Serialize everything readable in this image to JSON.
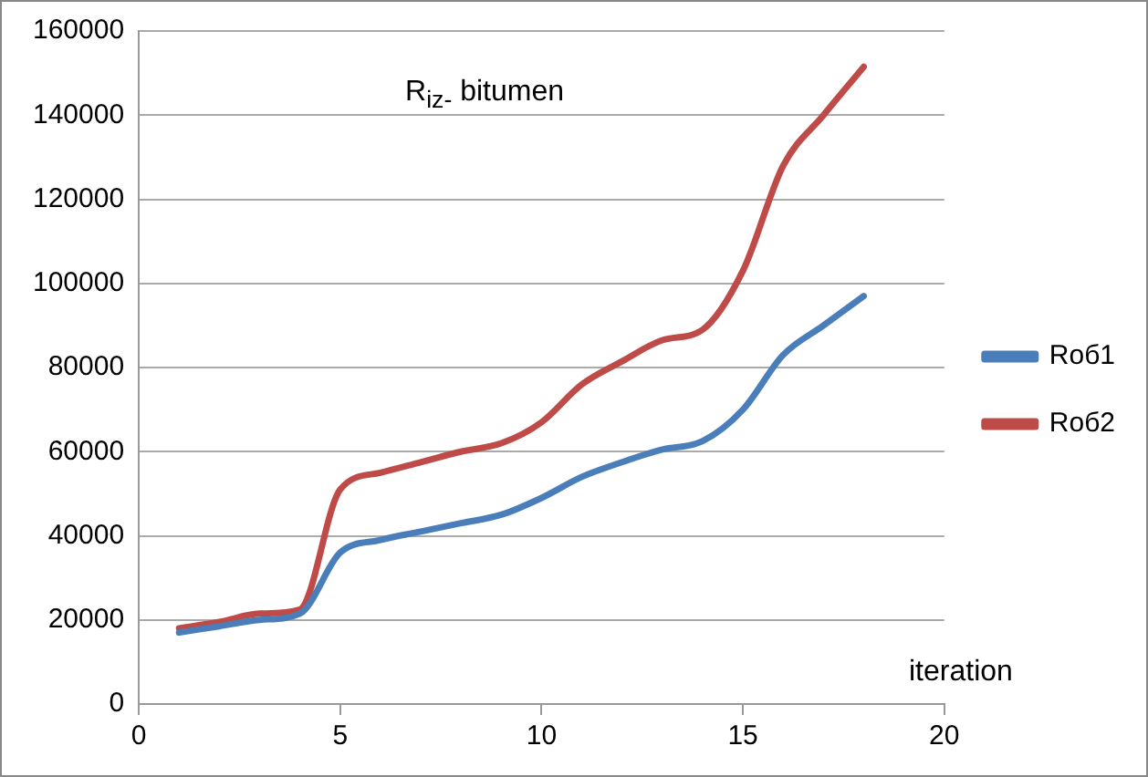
{
  "chart_data": {
    "type": "line",
    "title": "R$_{iz-}$ bitumen",
    "xlabel": "iteration",
    "x": [
      1,
      2,
      3,
      4,
      5,
      6,
      7,
      8,
      9,
      10,
      11,
      12,
      13,
      14,
      15,
      16,
      17,
      18
    ],
    "series": [
      {
        "name": "Roб1",
        "color": "#4a7ebb",
        "values": [
          17000,
          18500,
          20000,
          21500,
          36000,
          39000,
          41000,
          43000,
          45000,
          49000,
          54000,
          57500,
          60500,
          62500,
          70000,
          83000,
          90000,
          97000
        ]
      },
      {
        "name": "Roб2",
        "color": "#be4b48",
        "values": [
          18000,
          19500,
          21500,
          22500,
          51000,
          55000,
          57500,
          60000,
          62000,
          67000,
          76000,
          81500,
          86500,
          89000,
          103000,
          128000,
          140000,
          151500
        ]
      }
    ],
    "xlim": [
      0,
      20
    ],
    "xticks": [
      0,
      5,
      10,
      15,
      20
    ],
    "ylim": [
      0,
      160000
    ],
    "yticks": [
      0,
      20000,
      40000,
      60000,
      80000,
      100000,
      120000,
      140000,
      160000
    ],
    "grid": "y",
    "legend": "right",
    "marker": "none",
    "line_style": "solid"
  }
}
